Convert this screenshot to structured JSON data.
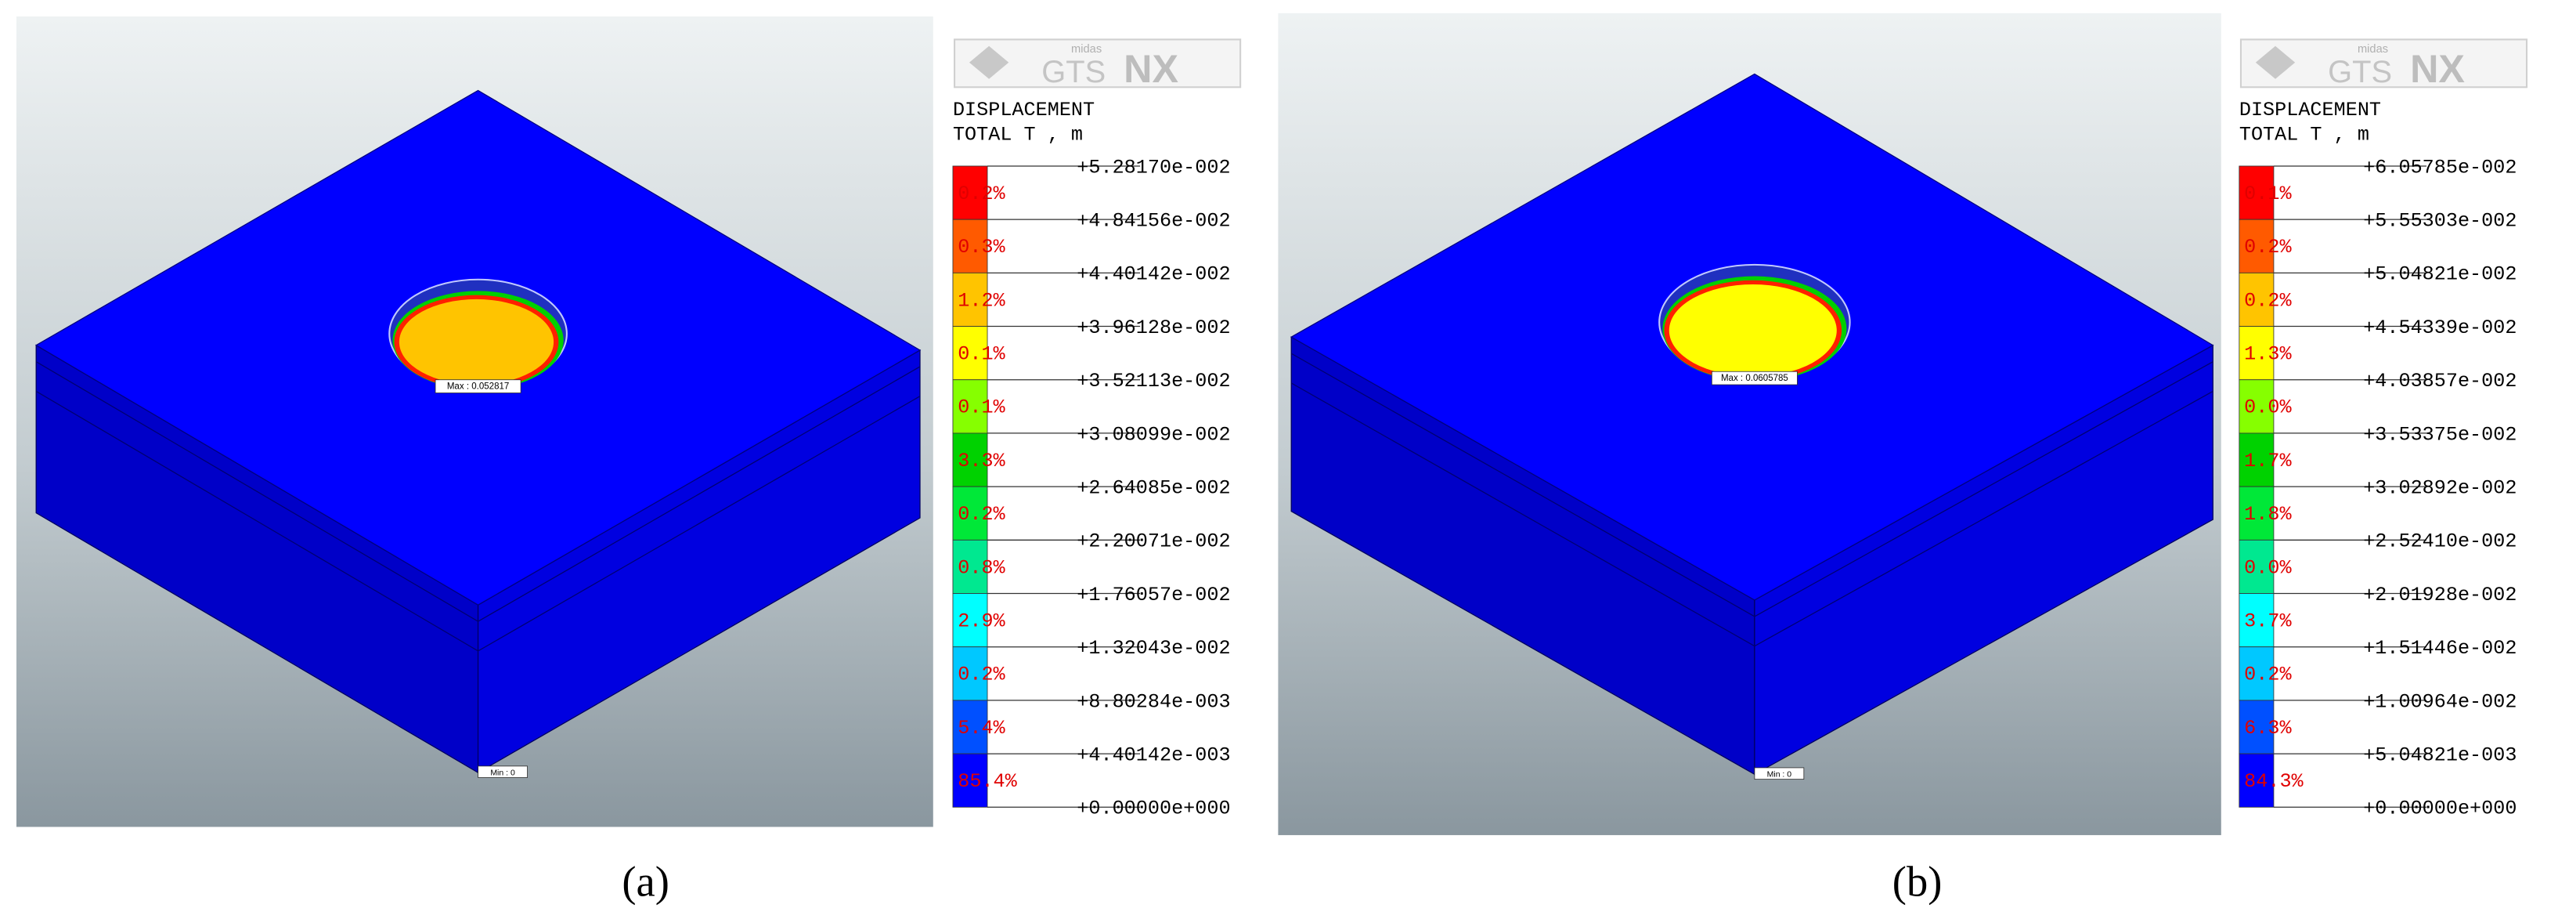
{
  "panels": [
    {
      "label": "(a)",
      "logo": {
        "brand": "midas",
        "product": "GTS",
        "suffix": "NX"
      },
      "legend": {
        "title": "DISPLACEMENT",
        "subtitle": "TOTAL T , m",
        "levels": [
          "+5.28170e-002",
          "+4.84156e-002",
          "+4.40142e-002",
          "+3.96128e-002",
          "+3.52113e-002",
          "+3.08099e-002",
          "+2.64085e-002",
          "+2.20071e-002",
          "+1.76057e-002",
          "+1.32043e-002",
          "+8.80284e-003",
          "+4.40142e-003",
          "+0.00000e+000"
        ],
        "percentages": [
          "0.2%",
          "0.3%",
          "1.2%",
          "0.1%",
          "0.1%",
          "3.3%",
          "0.2%",
          "0.8%",
          "2.9%",
          "0.2%",
          "5.4%",
          "85.4%"
        ]
      },
      "max_label": "Max : 0.052817",
      "min_label": "Min : 0"
    },
    {
      "label": "(b)",
      "logo": {
        "brand": "midas",
        "product": "GTS",
        "suffix": "NX"
      },
      "legend": {
        "title": "DISPLACEMENT",
        "subtitle": "TOTAL T , m",
        "levels": [
          "+6.05785e-002",
          "+5.55303e-002",
          "+5.04821e-002",
          "+4.54339e-002",
          "+4.03857e-002",
          "+3.53375e-002",
          "+3.02892e-002",
          "+2.52410e-002",
          "+2.01928e-002",
          "+1.51446e-002",
          "+1.00964e-002",
          "+5.04821e-003",
          "+0.00000e+000"
        ],
        "percentages": [
          "0.1%",
          "0.2%",
          "0.2%",
          "1.3%",
          "0.0%",
          "1.7%",
          "1.8%",
          "0.0%",
          "3.7%",
          "0.2%",
          "6.3%",
          "84.3%"
        ]
      },
      "max_label": "Max : 0.0605785",
      "min_label": "Min : 0"
    }
  ]
}
